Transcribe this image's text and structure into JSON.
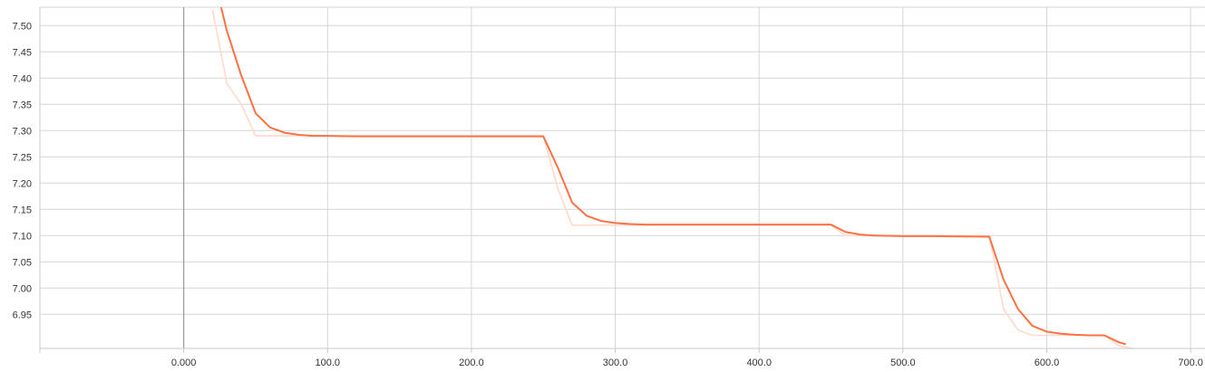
{
  "chart_data": {
    "type": "line",
    "xlim": [
      -100,
      710
    ],
    "ylim": [
      6.885,
      7.535
    ],
    "x_ticks": [
      0,
      100,
      200,
      300,
      400,
      500,
      600,
      700
    ],
    "x_tick_labels": [
      "0.000",
      "100.0",
      "200.0",
      "300.0",
      "400.0",
      "500.0",
      "600.0",
      "700.0"
    ],
    "y_ticks": [
      7.5,
      7.45,
      7.4,
      7.35,
      7.3,
      7.25,
      7.2,
      7.15,
      7.1,
      7.05,
      7.0,
      6.95
    ],
    "y_tick_labels": [
      "7.50",
      "7.45",
      "7.40",
      "7.35",
      "7.30",
      "7.25",
      "7.20",
      "7.15",
      "7.10",
      "7.05",
      "7.00",
      "6.95"
    ],
    "grid": true,
    "series": [
      {
        "role": "raw",
        "color": "#ffd9cc",
        "x": [
          20,
          30,
          40,
          50,
          60,
          70,
          80,
          250,
          260,
          270,
          280,
          290,
          300,
          450,
          460,
          470,
          560,
          570,
          580,
          590,
          600,
          640,
          650,
          660
        ],
        "y": [
          7.53,
          7.39,
          7.35,
          7.29,
          7.29,
          7.29,
          7.29,
          7.29,
          7.19,
          7.12,
          7.12,
          7.12,
          7.12,
          7.12,
          7.1,
          7.1,
          7.1,
          6.96,
          6.92,
          6.91,
          6.91,
          6.91,
          6.89,
          6.885
        ]
      },
      {
        "role": "smoothed",
        "color": "#ff7043",
        "x": [
          26,
          30,
          40,
          50,
          60,
          70,
          80,
          90,
          100,
          120,
          150,
          200,
          250,
          260,
          270,
          280,
          290,
          300,
          310,
          320,
          330,
          350,
          400,
          450,
          460,
          470,
          480,
          500,
          520,
          560,
          570,
          580,
          590,
          600,
          610,
          620,
          630,
          640,
          650,
          655
        ],
        "y": [
          7.535,
          7.49,
          7.405,
          7.333,
          7.306,
          7.296,
          7.292,
          7.29,
          7.29,
          7.289,
          7.289,
          7.289,
          7.289,
          7.23,
          7.163,
          7.138,
          7.128,
          7.124,
          7.122,
          7.121,
          7.121,
          7.121,
          7.121,
          7.121,
          7.107,
          7.102,
          7.1,
          7.099,
          7.099,
          7.098,
          7.016,
          6.96,
          6.928,
          6.917,
          6.913,
          6.911,
          6.91,
          6.91,
          6.897,
          6.893
        ]
      }
    ]
  }
}
